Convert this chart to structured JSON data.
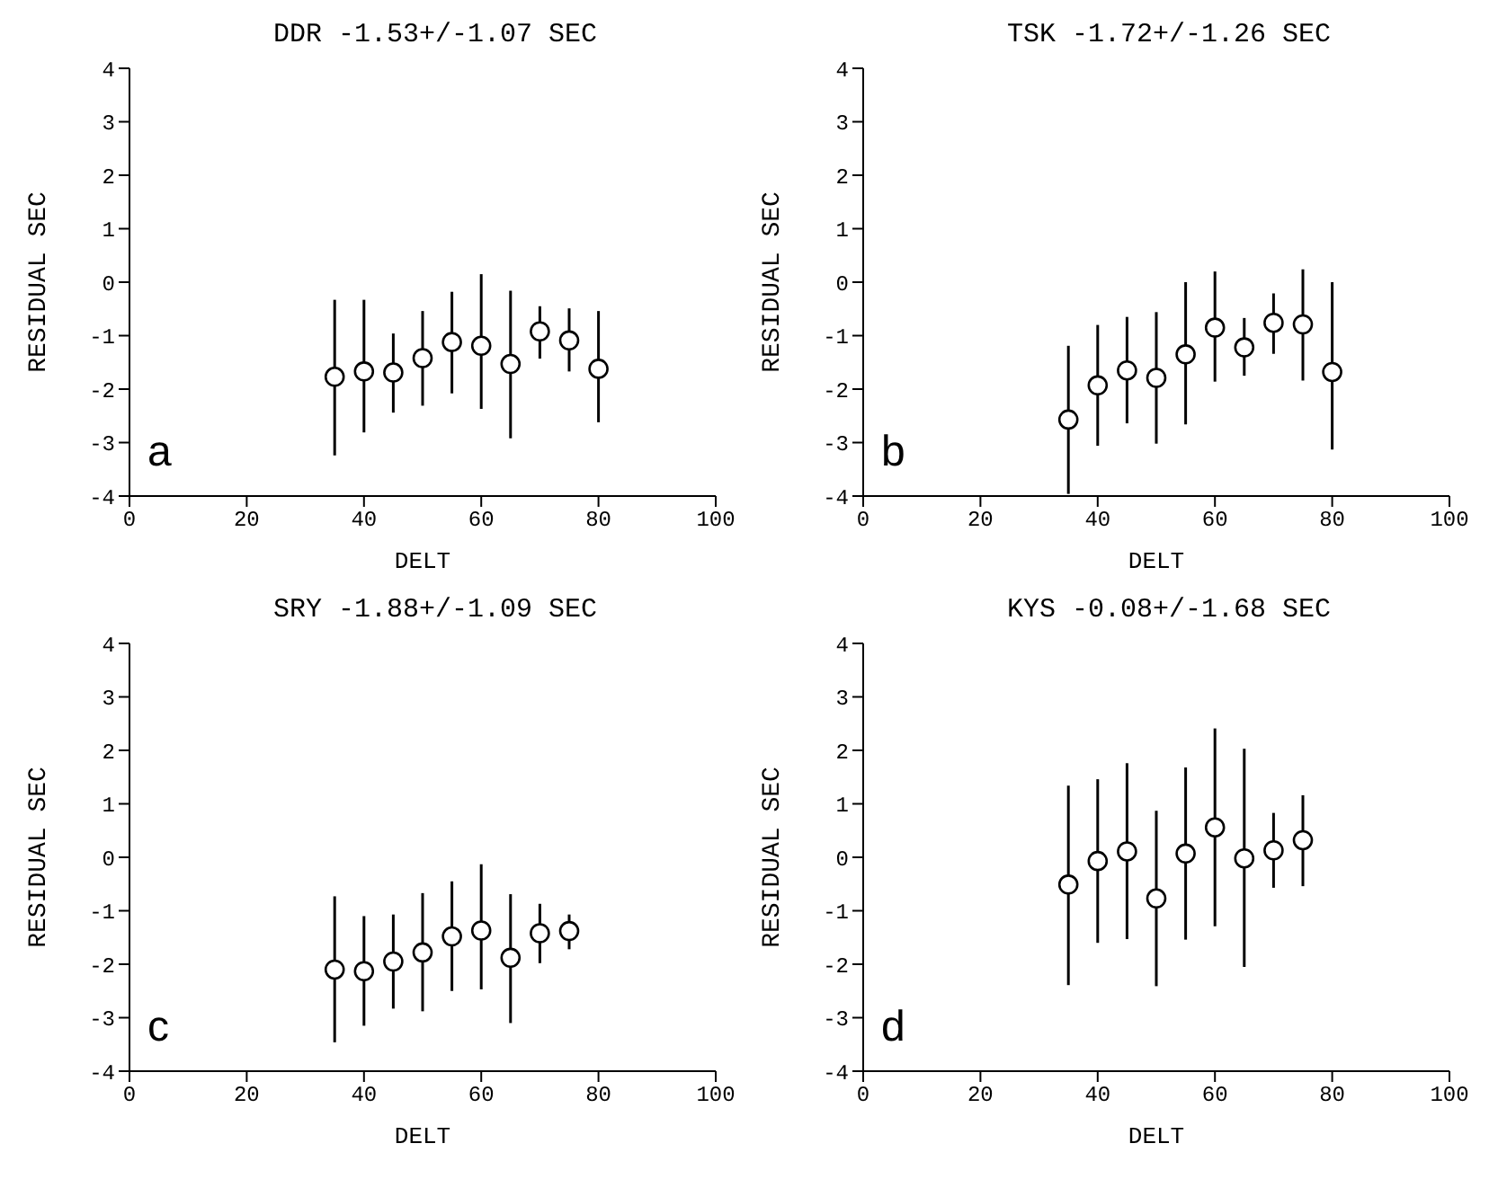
{
  "chart_data": [
    {
      "type": "scatter",
      "title": "DDR -1.53+/-1.07 SEC",
      "xlabel": "DELT",
      "ylabel": "RESIDUAL SEC",
      "annotations": [
        "a"
      ],
      "color": "#000000",
      "marker": "circle",
      "xlim": [
        0,
        100
      ],
      "xticks": [
        0,
        20,
        40,
        60,
        80,
        100
      ],
      "ylim": [
        -4,
        4
      ],
      "yticks": [
        -4,
        -3,
        -2,
        -1,
        0,
        1,
        2,
        3,
        4
      ],
      "x": [
        35,
        40,
        45,
        50,
        55,
        60,
        65,
        70,
        75,
        80
      ],
      "values": [
        -1.77,
        -1.67,
        -1.69,
        -1.42,
        -1.12,
        -1.19,
        -1.53,
        -0.92,
        -1.09,
        -1.62
      ],
      "errors": [
        [
          -3.24,
          -0.33
        ],
        [
          -2.81,
          -0.33
        ],
        [
          -2.44,
          -0.96
        ],
        [
          -2.31,
          -0.54
        ],
        [
          -2.08,
          -0.18
        ],
        [
          -2.37,
          0.15
        ],
        [
          -2.92,
          -0.16
        ],
        [
          -1.43,
          -0.45
        ],
        [
          -1.67,
          -0.49
        ],
        [
          -2.62,
          -0.54
        ]
      ]
    },
    {
      "type": "scatter",
      "title": "TSK -1.72+/-1.26 SEC",
      "xlabel": "DELT",
      "ylabel": "RESIDUAL SEC",
      "annotations": [
        "b"
      ],
      "color": "#000000",
      "marker": "circle",
      "xlim": [
        0,
        100
      ],
      "xticks": [
        0,
        20,
        40,
        60,
        80,
        100
      ],
      "ylim": [
        -4,
        4
      ],
      "yticks": [
        -4,
        -3,
        -2,
        -1,
        0,
        1,
        2,
        3,
        4
      ],
      "x": [
        35,
        40,
        45,
        50,
        55,
        60,
        65,
        70,
        75,
        80
      ],
      "values": [
        -2.57,
        -1.93,
        -1.65,
        -1.79,
        -1.35,
        -0.85,
        -1.22,
        -0.76,
        -0.79,
        -1.68
      ],
      "errors": [
        [
          -3.96,
          -1.19
        ],
        [
          -3.06,
          -0.8
        ],
        [
          -2.64,
          -0.65
        ],
        [
          -3.02,
          -0.56
        ],
        [
          -2.66,
          0
        ],
        [
          -1.86,
          0.2
        ],
        [
          -1.75,
          -0.67
        ],
        [
          -1.34,
          -0.21
        ],
        [
          -1.84,
          0.24
        ],
        [
          -3.13,
          0
        ]
      ]
    },
    {
      "type": "scatter",
      "title": "SRY -1.88+/-1.09 SEC",
      "xlabel": "DELT",
      "ylabel": "RESIDUAL SEC",
      "annotations": [
        "c"
      ],
      "color": "#000000",
      "marker": "circle",
      "xlim": [
        0,
        100
      ],
      "xticks": [
        0,
        20,
        40,
        60,
        80,
        100
      ],
      "ylim": [
        -4,
        4
      ],
      "yticks": [
        -4,
        -3,
        -2,
        -1,
        0,
        1,
        2,
        3,
        4
      ],
      "x": [
        35,
        40,
        45,
        50,
        55,
        60,
        65,
        70,
        75
      ],
      "values": [
        -2.1,
        -2.13,
        -1.95,
        -1.78,
        -1.48,
        -1.37,
        -1.88,
        -1.42,
        -1.38
      ],
      "errors": [
        [
          -3.46,
          -0.73
        ],
        [
          -3.15,
          -1.1
        ],
        [
          -2.83,
          -1.07
        ],
        [
          -2.88,
          -0.67
        ],
        [
          -2.5,
          -0.45
        ],
        [
          -2.47,
          -0.13
        ],
        [
          -3.1,
          -0.69
        ],
        [
          -1.98,
          -0.87
        ],
        [
          -1.72,
          -1.07
        ]
      ]
    },
    {
      "type": "scatter",
      "title": "KYS -0.08+/-1.68 SEC",
      "xlabel": "DELT",
      "ylabel": "RESIDUAL SEC",
      "annotations": [
        "d"
      ],
      "color": "#000000",
      "marker": "circle",
      "xlim": [
        0,
        100
      ],
      "xticks": [
        0,
        20,
        40,
        60,
        80,
        100
      ],
      "ylim": [
        -4,
        4
      ],
      "yticks": [
        -4,
        -3,
        -2,
        -1,
        0,
        1,
        2,
        3,
        4
      ],
      "x": [
        35,
        40,
        45,
        50,
        55,
        60,
        65,
        70,
        75
      ],
      "values": [
        -0.51,
        -0.07,
        0.11,
        -0.77,
        0.07,
        0.56,
        -0.02,
        0.13,
        0.32
      ],
      "errors": [
        [
          -2.39,
          1.34
        ],
        [
          -1.6,
          1.46
        ],
        [
          -1.53,
          1.76
        ],
        [
          -2.41,
          0.87
        ],
        [
          -1.54,
          1.68
        ],
        [
          -1.29,
          2.41
        ],
        [
          -2.05,
          2.03
        ],
        [
          -0.57,
          0.83
        ],
        [
          -0.54,
          1.16
        ]
      ]
    }
  ]
}
